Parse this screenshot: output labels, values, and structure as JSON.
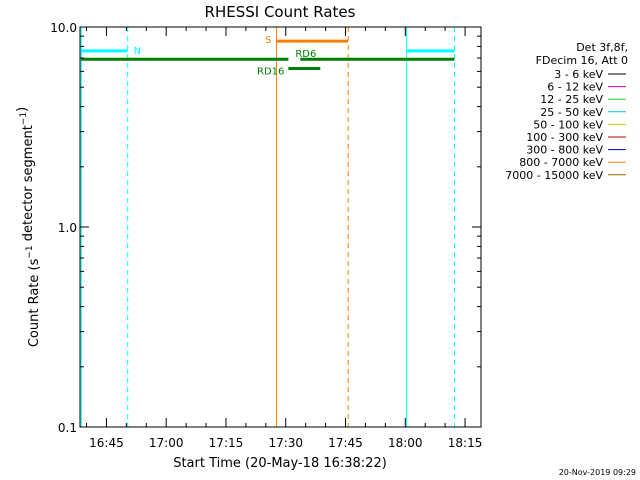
{
  "chart_data": {
    "type": "line",
    "title": "RHESSI Count Rates",
    "xlabel": "Start Time (20-May-18 16:38:22)",
    "ylabel": "Count Rate (s⁻¹ detector segment⁻¹)",
    "yscale": "log",
    "ylim": [
      0.1,
      10.0
    ],
    "xlim": [
      "16:38:22",
      "18:19:00"
    ],
    "x_ticks": [
      "16:45",
      "17:00",
      "17:15",
      "17:30",
      "17:45",
      "18:00",
      "18:15"
    ],
    "y_ticks": [
      "0.1",
      "1.0",
      "10.0"
    ],
    "legend_position": "top-right",
    "legend_header": [
      "Det 3f,8f,",
      "FDecim 16, Att 0"
    ],
    "legend": [
      {
        "label": "3 - 6 keV",
        "color": "#000000"
      },
      {
        "label": "6 - 12 keV",
        "color": "#cc00cc"
      },
      {
        "label": "12 - 25 keV",
        "color": "#33cc33"
      },
      {
        "label": "25 - 50 keV",
        "color": "#00cccc"
      },
      {
        "label": "50 - 100 keV",
        "color": "#cccc00"
      },
      {
        "label": "100 - 300 keV",
        "color": "#cc0000"
      },
      {
        "label": "300 - 800 keV",
        "color": "#0000cc"
      },
      {
        "label": "800 - 7000 keV",
        "color": "#ff8000"
      },
      {
        "label": "7000 - 15000 keV",
        "color": "#996600"
      }
    ],
    "vertical_lines": [
      {
        "x": "16:38:40",
        "color": "#00ffff",
        "style": "solid"
      },
      {
        "x": "16:69:00",
        "color": "#00ffff",
        "style": "dashed"
      }
    ],
    "markers": [
      {
        "x": "17:27:40",
        "color": "#ff8000",
        "style": "solid"
      },
      {
        "x": "17:45:40",
        "color": "#ff8000",
        "style": "dashed"
      },
      {
        "x": "18:00:20",
        "color": "#00ffff",
        "style": "solid"
      },
      {
        "x": "18:12:20",
        "color": "#00ffff",
        "style": "dashed"
      },
      {
        "x": "16:38:40",
        "color": "#00ffff",
        "style": "solid"
      },
      {
        "x": "16:50:20",
        "color": "#00ffff",
        "style": "dashed"
      }
    ],
    "segments": [
      {
        "label": "N",
        "x0": "16:38:40",
        "x1": "16:50:20",
        "y": 7.6,
        "color": "#00ffff"
      },
      {
        "label": "",
        "x0": "18:00:20",
        "x1": "18:12:20",
        "y": 7.6,
        "color": "#00ffff"
      },
      {
        "label": "S",
        "x0": "17:27:40",
        "x1": "17:45:40",
        "y": 8.5,
        "color": "#ff8000"
      },
      {
        "label": "",
        "x0": "16:38:40",
        "x1": "17:30:40",
        "y": 6.9,
        "color": "#007f00"
      },
      {
        "label": "RD6",
        "x0": "17:33:40",
        "x1": "18:12:20",
        "y": 6.9,
        "color": "#007f00"
      },
      {
        "label": "RD16",
        "x0": "17:30:40",
        "x1": "17:38:40",
        "y": 6.2,
        "color": "#007f00"
      }
    ],
    "timestamp": "20-Nov-2019 09:29"
  }
}
